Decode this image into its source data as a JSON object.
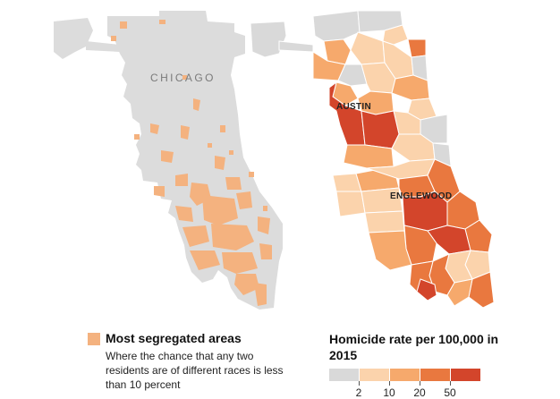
{
  "left_map": {
    "city_label": "CHICAGO"
  },
  "right_map": {
    "labels": {
      "austin": "AUSTIN",
      "englewood": "ENGLEWOOD"
    }
  },
  "legend_segregation": {
    "title": "Most segregated areas",
    "description": "Where the chance that any two residents are of different races is less than 10 percent",
    "color": "#f4b27f"
  },
  "legend_homicide": {
    "title": "Homicide rate per 100,000 in 2015",
    "colors": [
      "#d9d9d9",
      "#fbd3ac",
      "#f6a96c",
      "#e9783f",
      "#d3452b"
    ],
    "ticks": [
      "2",
      "10",
      "20",
      "50"
    ]
  },
  "colors": {
    "base_gray": "#dcdcdc",
    "segregated": "#f4b27f"
  }
}
